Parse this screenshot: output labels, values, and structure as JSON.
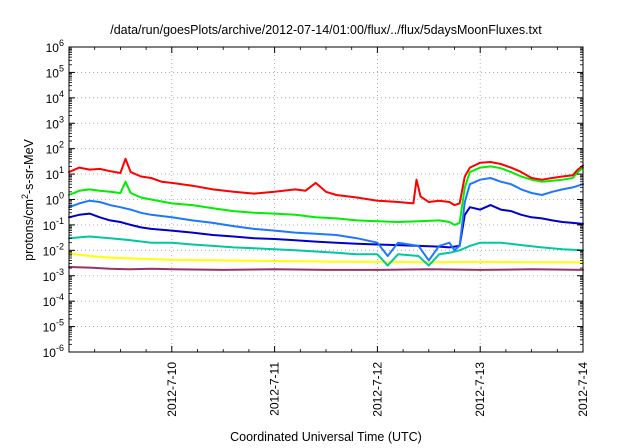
{
  "chart_data": {
    "type": "line",
    "title": "/data/run/goesPlots/archive/2012-07-14/01:00/flux/../flux/5daysMoonFluxes.txt",
    "xlabel": "Coordinated Universal Time (UTC)",
    "ylabel": "protons/cm2-s-sr-MeV",
    "ylabel_parts": {
      "main": "protons/cm",
      "sup": "2",
      "rest": "-s-sr-MeV"
    },
    "yscale": "log",
    "ylim_exp": [
      -6,
      6
    ],
    "y_tick_labels": [
      {
        "base": "10",
        "exp": "-6"
      },
      {
        "base": "10",
        "exp": "-5"
      },
      {
        "base": "10",
        "exp": "-4"
      },
      {
        "base": "10",
        "exp": "-3"
      },
      {
        "base": "10",
        "exp": "-2"
      },
      {
        "base": "10",
        "exp": "-1"
      },
      {
        "base": "10",
        "exp": "0"
      },
      {
        "base": "10",
        "exp": "1"
      },
      {
        "base": "10",
        "exp": "2"
      },
      {
        "base": "10",
        "exp": "3"
      },
      {
        "base": "10",
        "exp": "4"
      },
      {
        "base": "10",
        "exp": "5"
      },
      {
        "base": "10",
        "exp": "6"
      }
    ],
    "x_unit": "days",
    "xlim": [
      0,
      5.0
    ],
    "x_ticks": [
      {
        "x": 1.0,
        "label": "2012-7-10"
      },
      {
        "x": 2.0,
        "label": "2012-7-11"
      },
      {
        "x": 3.0,
        "label": "2012-7-12"
      },
      {
        "x": 4.0,
        "label": "2012-7-13"
      },
      {
        "x": 5.0,
        "label": "2012-7-14"
      }
    ],
    "grid": true,
    "series": [
      {
        "color": "#ff0000",
        "points": [
          [
            0.0,
            12
          ],
          [
            0.1,
            18
          ],
          [
            0.2,
            15
          ],
          [
            0.3,
            16
          ],
          [
            0.4,
            13
          ],
          [
            0.5,
            11
          ],
          [
            0.55,
            40
          ],
          [
            0.6,
            12
          ],
          [
            0.7,
            8
          ],
          [
            0.8,
            7
          ],
          [
            0.9,
            5
          ],
          [
            1.0,
            4.5
          ],
          [
            1.2,
            3.5
          ],
          [
            1.4,
            2.5
          ],
          [
            1.6,
            2
          ],
          [
            1.8,
            1.7
          ],
          [
            2.0,
            2
          ],
          [
            2.2,
            2.5
          ],
          [
            2.3,
            2.2
          ],
          [
            2.4,
            4.5
          ],
          [
            2.5,
            2
          ],
          [
            2.6,
            1.5
          ],
          [
            2.8,
            1.2
          ],
          [
            3.0,
            0.9
          ],
          [
            3.2,
            0.8
          ],
          [
            3.35,
            0.7
          ],
          [
            3.38,
            6
          ],
          [
            3.42,
            1.3
          ],
          [
            3.5,
            0.8
          ],
          [
            3.6,
            0.9
          ],
          [
            3.7,
            0.8
          ],
          [
            3.75,
            0.6
          ],
          [
            3.8,
            0.7
          ],
          [
            3.85,
            8
          ],
          [
            3.9,
            18
          ],
          [
            4.0,
            28
          ],
          [
            4.1,
            30
          ],
          [
            4.2,
            25
          ],
          [
            4.3,
            18
          ],
          [
            4.4,
            12
          ],
          [
            4.5,
            7
          ],
          [
            4.6,
            6
          ],
          [
            4.7,
            7
          ],
          [
            4.8,
            8
          ],
          [
            4.9,
            9
          ],
          [
            4.95,
            15
          ],
          [
            5.0,
            22
          ]
        ]
      },
      {
        "color": "#00ee00",
        "points": [
          [
            0.0,
            1.5
          ],
          [
            0.1,
            2.2
          ],
          [
            0.2,
            2.5
          ],
          [
            0.3,
            2.2
          ],
          [
            0.4,
            2
          ],
          [
            0.5,
            1.8
          ],
          [
            0.55,
            5
          ],
          [
            0.6,
            1.8
          ],
          [
            0.7,
            1.2
          ],
          [
            0.8,
            1
          ],
          [
            1.0,
            0.7
          ],
          [
            1.2,
            0.6
          ],
          [
            1.4,
            0.45
          ],
          [
            1.6,
            0.35
          ],
          [
            1.8,
            0.3
          ],
          [
            2.0,
            0.28
          ],
          [
            2.2,
            0.25
          ],
          [
            2.4,
            0.2
          ],
          [
            2.6,
            0.18
          ],
          [
            2.8,
            0.15
          ],
          [
            3.0,
            0.14
          ],
          [
            3.2,
            0.13
          ],
          [
            3.4,
            0.14
          ],
          [
            3.6,
            0.15
          ],
          [
            3.7,
            0.13
          ],
          [
            3.75,
            0.1
          ],
          [
            3.8,
            0.12
          ],
          [
            3.85,
            3
          ],
          [
            3.9,
            12
          ],
          [
            4.0,
            18
          ],
          [
            4.1,
            20
          ],
          [
            4.2,
            17
          ],
          [
            4.3,
            12
          ],
          [
            4.4,
            8
          ],
          [
            4.5,
            6
          ],
          [
            4.6,
            5
          ],
          [
            4.7,
            5.5
          ],
          [
            4.8,
            6
          ],
          [
            4.9,
            7
          ],
          [
            4.95,
            12
          ],
          [
            5.0,
            18
          ]
        ]
      },
      {
        "color": "#1e78ff",
        "points": [
          [
            0.0,
            0.5
          ],
          [
            0.1,
            0.7
          ],
          [
            0.2,
            0.9
          ],
          [
            0.3,
            0.8
          ],
          [
            0.4,
            0.6
          ],
          [
            0.5,
            0.5
          ],
          [
            0.6,
            0.4
          ],
          [
            0.7,
            0.3
          ],
          [
            0.8,
            0.25
          ],
          [
            1.0,
            0.2
          ],
          [
            1.2,
            0.15
          ],
          [
            1.4,
            0.12
          ],
          [
            1.6,
            0.09
          ],
          [
            1.8,
            0.07
          ],
          [
            2.0,
            0.06
          ],
          [
            2.2,
            0.05
          ],
          [
            2.4,
            0.045
          ],
          [
            2.6,
            0.04
          ],
          [
            2.8,
            0.03
          ],
          [
            3.0,
            0.02
          ],
          [
            3.1,
            0.006
          ],
          [
            3.2,
            0.02
          ],
          [
            3.4,
            0.015
          ],
          [
            3.5,
            0.004
          ],
          [
            3.6,
            0.015
          ],
          [
            3.7,
            0.02
          ],
          [
            3.75,
            0.01
          ],
          [
            3.8,
            0.015
          ],
          [
            3.85,
            0.8
          ],
          [
            3.9,
            4
          ],
          [
            4.0,
            6
          ],
          [
            4.1,
            7
          ],
          [
            4.2,
            5
          ],
          [
            4.3,
            4
          ],
          [
            4.4,
            2.5
          ],
          [
            4.5,
            1.8
          ],
          [
            4.6,
            1.5
          ],
          [
            4.7,
            2
          ],
          [
            4.8,
            2.5
          ],
          [
            4.9,
            3
          ],
          [
            5.0,
            4
          ]
        ]
      },
      {
        "color": "#0000cc",
        "points": [
          [
            0.0,
            0.2
          ],
          [
            0.1,
            0.25
          ],
          [
            0.2,
            0.28
          ],
          [
            0.3,
            0.2
          ],
          [
            0.4,
            0.15
          ],
          [
            0.5,
            0.13
          ],
          [
            0.6,
            0.1
          ],
          [
            0.7,
            0.08
          ],
          [
            0.8,
            0.07
          ],
          [
            1.0,
            0.06
          ],
          [
            1.2,
            0.05
          ],
          [
            1.4,
            0.04
          ],
          [
            1.6,
            0.035
          ],
          [
            1.8,
            0.03
          ],
          [
            2.0,
            0.028
          ],
          [
            2.2,
            0.025
          ],
          [
            2.4,
            0.022
          ],
          [
            2.6,
            0.02
          ],
          [
            2.8,
            0.018
          ],
          [
            3.0,
            0.017
          ],
          [
            3.2,
            0.016
          ],
          [
            3.4,
            0.015
          ],
          [
            3.6,
            0.014
          ],
          [
            3.7,
            0.013
          ],
          [
            3.8,
            0.015
          ],
          [
            3.85,
            0.25
          ],
          [
            3.9,
            0.5
          ],
          [
            4.0,
            0.4
          ],
          [
            4.1,
            0.6
          ],
          [
            4.2,
            0.4
          ],
          [
            4.3,
            0.35
          ],
          [
            4.4,
            0.25
          ],
          [
            4.5,
            0.2
          ],
          [
            4.6,
            0.18
          ],
          [
            4.7,
            0.15
          ],
          [
            4.8,
            0.13
          ],
          [
            4.9,
            0.12
          ],
          [
            5.0,
            0.11
          ]
        ]
      },
      {
        "color": "#00c8a0",
        "points": [
          [
            0.0,
            0.03
          ],
          [
            0.2,
            0.035
          ],
          [
            0.4,
            0.03
          ],
          [
            0.6,
            0.025
          ],
          [
            0.8,
            0.02
          ],
          [
            1.0,
            0.02
          ],
          [
            1.2,
            0.017
          ],
          [
            1.4,
            0.015
          ],
          [
            1.6,
            0.013
          ],
          [
            1.8,
            0.012
          ],
          [
            2.0,
            0.011
          ],
          [
            2.2,
            0.01
          ],
          [
            2.4,
            0.009
          ],
          [
            2.6,
            0.008
          ],
          [
            2.8,
            0.007
          ],
          [
            3.0,
            0.007
          ],
          [
            3.1,
            0.0025
          ],
          [
            3.2,
            0.007
          ],
          [
            3.4,
            0.006
          ],
          [
            3.5,
            0.0025
          ],
          [
            3.6,
            0.007
          ],
          [
            3.7,
            0.008
          ],
          [
            3.8,
            0.01
          ],
          [
            3.9,
            0.015
          ],
          [
            4.0,
            0.02
          ],
          [
            4.2,
            0.02
          ],
          [
            4.4,
            0.016
          ],
          [
            4.6,
            0.013
          ],
          [
            4.8,
            0.011
          ],
          [
            5.0,
            0.01
          ]
        ]
      },
      {
        "color": "#ffff00",
        "points": [
          [
            0.0,
            0.0075
          ],
          [
            0.2,
            0.006
          ],
          [
            0.4,
            0.0052
          ],
          [
            0.6,
            0.0048
          ],
          [
            0.8,
            0.0045
          ],
          [
            1.0,
            0.0042
          ],
          [
            1.5,
            0.004
          ],
          [
            2.0,
            0.0038
          ],
          [
            2.5,
            0.0036
          ],
          [
            3.0,
            0.0035
          ],
          [
            3.5,
            0.0034
          ],
          [
            4.0,
            0.0035
          ],
          [
            4.5,
            0.0034
          ],
          [
            5.0,
            0.0034
          ]
        ]
      },
      {
        "color": "#993366",
        "points": [
          [
            0.0,
            0.0022
          ],
          [
            0.2,
            0.0021
          ],
          [
            0.4,
            0.0019
          ],
          [
            0.6,
            0.0018
          ],
          [
            0.8,
            0.0019
          ],
          [
            1.0,
            0.0018
          ],
          [
            1.5,
            0.0017
          ],
          [
            2.0,
            0.0018
          ],
          [
            2.5,
            0.0017
          ],
          [
            3.0,
            0.0017
          ],
          [
            3.5,
            0.0018
          ],
          [
            4.0,
            0.0017
          ],
          [
            4.5,
            0.0018
          ],
          [
            5.0,
            0.0017
          ]
        ]
      }
    ]
  }
}
